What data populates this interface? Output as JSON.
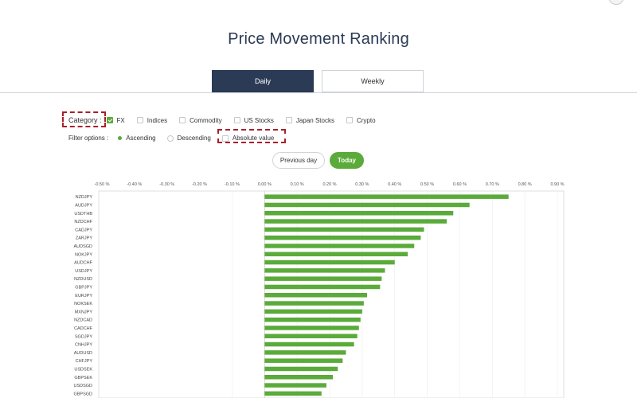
{
  "page": {
    "title": "Price Movement Ranking"
  },
  "tabs": [
    {
      "label": "Daily",
      "active": true
    },
    {
      "label": "Weekly",
      "active": false
    }
  ],
  "category": {
    "label": "Category :",
    "items": [
      {
        "label": "FX",
        "checked": true
      },
      {
        "label": "Indices",
        "checked": false
      },
      {
        "label": "Commodity",
        "checked": false
      },
      {
        "label": "US Stocks",
        "checked": false
      },
      {
        "label": "Japan Stocks",
        "checked": false
      },
      {
        "label": "Crypto",
        "checked": false
      }
    ]
  },
  "filter": {
    "label": "Filter options :",
    "ascending": "Ascending",
    "descending": "Descending",
    "absolute": "Absolute value",
    "selected": "ascending"
  },
  "day_buttons": {
    "previous": "Previous day",
    "today": "Today",
    "selected": "today"
  },
  "colors": {
    "accent": "#5aab3a",
    "tab_active": "#2b3a55",
    "highlight": "#a8202c"
  },
  "chart_data": {
    "type": "bar",
    "orientation": "horizontal",
    "title": "",
    "xlabel": "",
    "ylabel": "",
    "xlim": [
      -0.1,
      0.9
    ],
    "x_ticks": [
      "-0.50 %",
      "-0.40 %",
      "-0.30 %",
      "-0.20 %",
      "-0.10 %",
      "0.00 %",
      "0.10 %",
      "0.20 %",
      "0.30 %",
      "0.40 %",
      "0.50 %",
      "0.60 %",
      "0.70 %",
      "0.80 %",
      "0.90 %"
    ],
    "x_tick_values": [
      -0.5,
      -0.4,
      -0.3,
      -0.2,
      -0.1,
      0.0,
      0.1,
      0.2,
      0.3,
      0.4,
      0.5,
      0.6,
      0.7,
      0.8,
      0.9
    ],
    "categories": [
      "NZDJPY",
      "AUDJPY",
      "USDTHB",
      "NZDCHF",
      "CADJPY",
      "ZARJPY",
      "AUDSGD",
      "NOKJPY",
      "AUDCHF",
      "USDJPY",
      "NZDUSD",
      "GBPJPY",
      "EURJPY",
      "NOKSEK",
      "MXNJPY",
      "NZDCAD",
      "CADCHF",
      "SGDJPY",
      "CNHJPY",
      "AUDUSD",
      "CHFJPY",
      "USDSEK",
      "GBPSEK",
      "USDSGD",
      "GBPSGD"
    ],
    "values": [
      0.75,
      0.63,
      0.58,
      0.56,
      0.49,
      0.48,
      0.46,
      0.44,
      0.4,
      0.37,
      0.36,
      0.355,
      0.315,
      0.305,
      0.3,
      0.295,
      0.29,
      0.285,
      0.275,
      0.25,
      0.24,
      0.225,
      0.21,
      0.19,
      0.175
    ],
    "grid": true,
    "legend": "none"
  }
}
